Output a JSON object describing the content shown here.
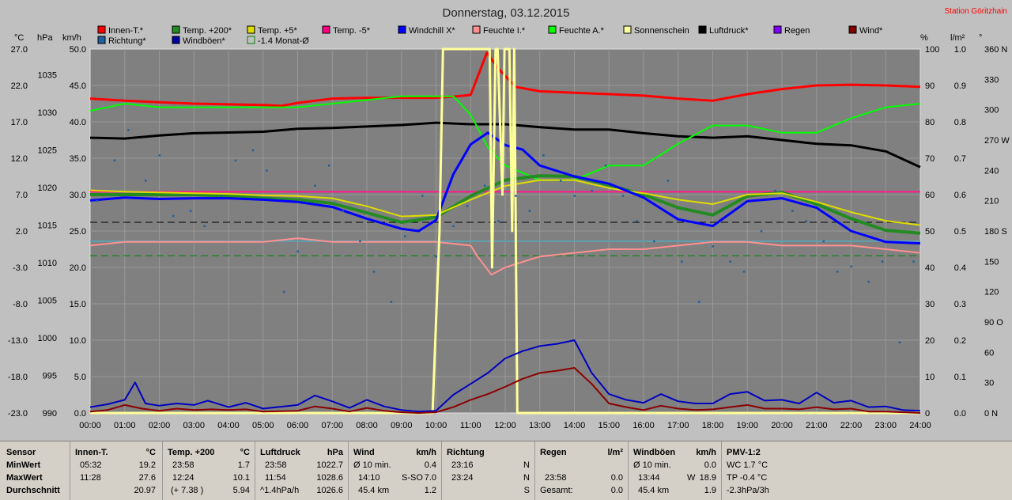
{
  "header": {
    "title": "Donnerstag, 03.12.2015",
    "station": "Station Göritzhain"
  },
  "units": {
    "celsius": "°C",
    "hpa": "hPa",
    "kmh": "km/h",
    "percent": "%",
    "lm2": "l/m²",
    "degree": "°"
  },
  "legend": [
    {
      "label": "Innen-T.*",
      "color": "#ff0000",
      "style": "box"
    },
    {
      "label": "Temp. +200*",
      "color": "#228b22",
      "style": "box"
    },
    {
      "label": "Temp. +5*",
      "color": "#dddd00",
      "style": "box"
    },
    {
      "label": "Temp. -5*",
      "color": "#ff0080",
      "style": "box"
    },
    {
      "label": "Windchill X*",
      "color": "#0000ff",
      "style": "box"
    },
    {
      "label": "Feuchte I.*",
      "color": "#ff9090",
      "style": "box"
    },
    {
      "label": "Feuchte A.*",
      "color": "#00ff00",
      "style": "box"
    },
    {
      "label": "Sonnenschein",
      "color": "#ffffa0",
      "style": "box"
    },
    {
      "label": "Luftdruck*",
      "color": "#000000",
      "style": "box"
    },
    {
      "label": "Regen",
      "color": "#8000ff",
      "style": "box"
    },
    {
      "label": "Wind*",
      "color": "#800000",
      "style": "box"
    },
    {
      "label": "Richtung*",
      "color": "#1f5f9f",
      "style": "box"
    },
    {
      "label": "Windböen*",
      "color": "#0000a0",
      "style": "box"
    },
    {
      "label": "-1.4 Monat-Ø",
      "color": "#008000",
      "style": "open"
    }
  ],
  "chart_data": {
    "type": "line",
    "title": "Donnerstag, 03.12.2015",
    "x_ticks": [
      "00:00",
      "01:00",
      "02:00",
      "03:00",
      "04:00",
      "05:00",
      "06:00",
      "07:00",
      "08:00",
      "09:00",
      "10:00",
      "11:00",
      "12:00",
      "13:00",
      "14:00",
      "15:00",
      "16:00",
      "17:00",
      "18:00",
      "19:00",
      "20:00",
      "21:00",
      "22:00",
      "23:00",
      "24:00"
    ],
    "axes": {
      "temp_c": {
        "ticks": [
          "27.0",
          "22.0",
          "17.0",
          "12.0",
          "7.0",
          "2.0",
          "-3.0",
          "-8.0",
          "-13.0",
          "-18.0",
          "-23.0"
        ],
        "range": [
          -23,
          27
        ]
      },
      "pressure_hpa": {
        "ticks": [
          "1035",
          "1030",
          "1025",
          "1020",
          "1015",
          "1010",
          "1005",
          "1000",
          "995",
          "990"
        ],
        "range": [
          990,
          1038.4
        ]
      },
      "wind_kmh": {
        "ticks": [
          "50.0",
          "45.0",
          "40.0",
          "35.0",
          "30.0",
          "25.0",
          "20.0",
          "15.0",
          "10.0",
          "5.0",
          "0.0"
        ],
        "range": [
          0,
          50
        ]
      },
      "humidity_pct": {
        "ticks": [
          "100",
          "90",
          "80",
          "70",
          "60",
          "50",
          "40",
          "30",
          "20",
          "10",
          "0"
        ],
        "range": [
          0,
          100
        ]
      },
      "rain_lm2": {
        "ticks": [
          "1.0",
          "0.9",
          "0.8",
          "0.7",
          "0.6",
          "0.5",
          "0.4",
          "0.3",
          "0.2",
          "0.1",
          "0.0"
        ],
        "range": [
          0,
          1
        ]
      },
      "direction_deg": {
        "ticks": [
          "360 N",
          "330",
          "300",
          "270 W",
          "240",
          "210",
          "180 S",
          "150",
          "120",
          "90 O",
          "60",
          "30",
          "0 N"
        ],
        "range": [
          0,
          360
        ]
      }
    },
    "reference_lines": [
      {
        "name": "Temp. -5*",
        "axis": "temp_c",
        "value": 7.4,
        "color": "#ff1a8c",
        "dash": "solid"
      },
      {
        "axis": "temp_c",
        "value": 3.2,
        "color": "#000000",
        "dash": "dashed"
      },
      {
        "name": "-1.4 Monat-Ø",
        "axis": "temp_c",
        "value": -1.4,
        "color": "#008000",
        "dash": "dashed"
      },
      {
        "axis": "temp_c",
        "value": 0.6,
        "color": "#60a0b0",
        "dash": "solid"
      }
    ],
    "series": [
      {
        "name": "Luftdruck*",
        "axis": "pressure_hpa",
        "color": "#000000",
        "x": [
          0,
          1,
          2,
          3,
          4,
          5,
          6,
          7,
          8,
          9,
          10,
          11,
          12,
          13,
          14,
          15,
          16,
          17,
          18,
          19,
          20,
          21,
          22,
          23,
          24
        ],
        "y": [
          1026.6,
          1026.5,
          1026.9,
          1027.2,
          1027.3,
          1027.4,
          1027.8,
          1027.9,
          1028.1,
          1028.3,
          1028.6,
          1028.4,
          1028.4,
          1028.0,
          1027.7,
          1027.7,
          1027.2,
          1026.8,
          1026.6,
          1026.8,
          1026.3,
          1025.8,
          1025.6,
          1024.8,
          1022.7
        ]
      },
      {
        "name": "Innen-T.*",
        "axis": "temp_c",
        "color": "#ff0000",
        "x": [
          0,
          1,
          2,
          3,
          4,
          5,
          5.53,
          6,
          7,
          8,
          9,
          10,
          10.6,
          11,
          11.47,
          11.8,
          12.3,
          13,
          14,
          15,
          16,
          17,
          18,
          19,
          20,
          21,
          22,
          23,
          24
        ],
        "y": [
          20.2,
          19.9,
          19.7,
          19.5,
          19.4,
          19.3,
          19.2,
          19.6,
          20.2,
          20.3,
          20.3,
          20.3,
          20.5,
          20.7,
          26.5,
          24.3,
          21.8,
          21.2,
          21.0,
          20.8,
          20.6,
          20.2,
          19.9,
          20.8,
          21.5,
          22.0,
          22.1,
          22.0,
          21.8
        ]
      },
      {
        "name": "Feuchte A.*",
        "axis": "humidity_pct",
        "color": "#00ff00",
        "x": [
          0,
          1,
          2,
          3,
          4,
          5,
          6,
          7,
          8,
          9,
          10,
          10.5,
          11,
          11.5,
          12,
          13,
          14,
          15,
          16,
          17,
          18,
          19,
          20,
          21,
          22,
          23,
          24
        ],
        "y": [
          83,
          85,
          84,
          84,
          84,
          84,
          84,
          85,
          86,
          87,
          87,
          87,
          82,
          73,
          68,
          64,
          64,
          68,
          68,
          74,
          79,
          79,
          77,
          77,
          81,
          84,
          85
        ]
      },
      {
        "name": "Feuchte I.*",
        "axis": "humidity_pct",
        "color": "#ff9090",
        "x": [
          0,
          1,
          2,
          3,
          4,
          5,
          6,
          7,
          8,
          9,
          10,
          11,
          11.2,
          11.6,
          12,
          13,
          14,
          15,
          16,
          17,
          18,
          19,
          20,
          21,
          22,
          23,
          24
        ],
        "y": [
          46,
          47,
          47,
          47,
          47,
          47,
          48,
          47,
          47,
          47,
          47,
          46,
          43,
          38,
          40,
          43,
          44,
          45,
          45,
          46,
          47,
          47,
          46,
          46,
          46,
          45,
          44
        ]
      },
      {
        "name": "Temp. +200*",
        "axis": "temp_c",
        "color": "#228b22",
        "x": [
          0,
          1,
          2,
          3,
          4,
          5,
          6,
          7,
          8,
          9,
          10,
          11,
          12,
          13,
          14,
          15,
          16,
          17,
          18,
          19,
          20,
          21,
          22,
          23,
          24
        ],
        "y": [
          7.0,
          7.0,
          7.0,
          7.0,
          6.8,
          6.5,
          6.3,
          5.8,
          4.5,
          3.2,
          3.9,
          6.8,
          9.0,
          9.6,
          9.5,
          8.3,
          7.0,
          5.2,
          4.2,
          6.8,
          7.3,
          5.7,
          3.7,
          2.1,
          1.7
        ]
      },
      {
        "name": "Temp. +5*",
        "axis": "temp_c",
        "color": "#dddd00",
        "x": [
          0,
          1,
          2,
          3,
          4,
          5,
          6,
          7,
          8,
          9,
          10,
          11,
          12,
          13,
          14,
          15,
          16,
          17,
          18,
          19,
          20,
          21,
          22,
          23,
          24
        ],
        "y": [
          7.6,
          7.4,
          7.3,
          7.2,
          7.1,
          6.9,
          6.8,
          6.5,
          5.4,
          4.0,
          4.2,
          6.3,
          8.2,
          9.0,
          9.0,
          7.9,
          7.2,
          6.3,
          5.7,
          7.0,
          7.2,
          6.0,
          4.6,
          3.4,
          2.8
        ]
      },
      {
        "name": "Windchill X*",
        "axis": "temp_c",
        "color": "#0000ff",
        "x": [
          0,
          1,
          2,
          3,
          4,
          5,
          6,
          7,
          8,
          9,
          9.5,
          10,
          10.5,
          11,
          11.5,
          12,
          12.5,
          13,
          14,
          15,
          16,
          17,
          18,
          19,
          20,
          21,
          22,
          23,
          24
        ],
        "y": [
          6.2,
          6.6,
          6.4,
          6.5,
          6.5,
          6.3,
          6.0,
          5.3,
          3.7,
          2.3,
          2.0,
          3.5,
          9.8,
          13.9,
          15.5,
          13.8,
          13.2,
          11.0,
          9.5,
          8.5,
          6.6,
          3.6,
          2.7,
          6.1,
          6.5,
          5.2,
          2.0,
          0.5,
          0.3
        ]
      },
      {
        "name": "Sonnenschein",
        "axis": "humidity_pct",
        "color": "#ffff99",
        "x": [
          0,
          9.9,
          10.1,
          10.2,
          11.0,
          11.3,
          11.55,
          11.62,
          11.72,
          11.78,
          11.92,
          11.98,
          12.12,
          12.2,
          12.26,
          12.35,
          24
        ],
        "y": [
          0,
          0,
          50,
          100,
          100,
          100,
          100,
          40,
          100,
          100,
          60,
          100,
          100,
          50,
          100,
          0,
          0
        ]
      },
      {
        "name": "Windböen*",
        "axis": "wind_kmh",
        "color": "#0000c0",
        "x": [
          0,
          0.5,
          1,
          1.3,
          1.6,
          2,
          2.5,
          3,
          3.4,
          4,
          4.5,
          5,
          6,
          6.5,
          7,
          7.5,
          8,
          8.5,
          9,
          9.5,
          10,
          10.5,
          11,
          11.5,
          12,
          12.5,
          13,
          13.5,
          14,
          14.5,
          15,
          15.5,
          16,
          16.5,
          17,
          17.5,
          18,
          18.5,
          19,
          19.5,
          20,
          20.5,
          21,
          21.5,
          22,
          22.5,
          23,
          23.5,
          24
        ],
        "y": [
          0.8,
          1.2,
          1.8,
          4.2,
          1.3,
          1.0,
          1.3,
          1.1,
          1.7,
          0.8,
          1.4,
          0.6,
          1.1,
          2.4,
          1.6,
          0.7,
          1.8,
          0.9,
          0.4,
          0.2,
          0.3,
          2.5,
          4.0,
          5.5,
          7.5,
          8.5,
          9.2,
          9.5,
          10.0,
          5.5,
          2.6,
          1.8,
          1.4,
          2.6,
          1.6,
          1.3,
          1.3,
          2.6,
          2.9,
          1.7,
          1.8,
          1.3,
          2.8,
          1.4,
          1.7,
          0.8,
          0.9,
          0.4,
          0.3
        ]
      },
      {
        "name": "Wind*",
        "axis": "wind_kmh",
        "color": "#8b0000",
        "x": [
          0,
          0.5,
          1,
          1.5,
          2,
          2.5,
          3,
          3.5,
          4,
          4.5,
          5,
          6,
          6.5,
          7,
          7.5,
          8,
          8.5,
          9,
          9.5,
          10,
          10.5,
          11,
          11.5,
          12,
          12.5,
          13,
          13.5,
          14,
          14.5,
          15,
          15.5,
          16,
          16.5,
          17,
          17.5,
          18,
          18.5,
          19,
          19.5,
          20,
          20.5,
          21,
          21.5,
          22,
          22.5,
          23,
          23.5,
          24
        ],
        "y": [
          0.2,
          0.4,
          1.1,
          0.6,
          0.3,
          0.6,
          0.4,
          0.5,
          0.4,
          0.5,
          0.2,
          0.3,
          0.9,
          0.6,
          0.2,
          0.7,
          0.3,
          0.1,
          0.0,
          0.1,
          0.8,
          1.8,
          2.6,
          3.6,
          4.7,
          5.5,
          5.8,
          6.2,
          4.0,
          1.3,
          0.8,
          0.4,
          1.0,
          0.6,
          0.4,
          0.5,
          0.8,
          1.1,
          0.6,
          0.6,
          0.5,
          0.8,
          0.5,
          0.6,
          0.2,
          0.2,
          0.1,
          0.0
        ]
      },
      {
        "name": "Richtung*",
        "axis": "direction_deg",
        "color": "#1f5f9f",
        "x": [
          0.2,
          0.7,
          1.1,
          1.6,
          2.0,
          2.4,
          2.9,
          3.3,
          3.8,
          4.2,
          4.7,
          5.1,
          5.6,
          6.0,
          6.5,
          6.9,
          7.3,
          7.8,
          8.2,
          8.7,
          9.1,
          9.6,
          10.0,
          10.5,
          10.9,
          11.4,
          11.8,
          12.3,
          12.7,
          13.1,
          13.6,
          14.0,
          14.5,
          14.9,
          15.4,
          15.8,
          16.3,
          16.7,
          17.1,
          17.6,
          18.0,
          18.5,
          18.9,
          19.4,
          19.8,
          20.3,
          20.7,
          21.2,
          21.6,
          22.0,
          22.5,
          22.9,
          23.4,
          23.8
        ],
        "y": [
          210,
          250,
          280,
          230,
          255,
          195,
          200,
          185,
          215,
          250,
          260,
          240,
          120,
          160,
          225,
          245,
          200,
          170,
          140,
          110,
          175,
          215,
          155,
          185,
          205,
          225,
          190,
          215,
          200,
          255,
          230,
          215,
          220,
          245,
          215,
          190,
          170,
          230,
          150,
          110,
          165,
          150,
          140,
          180,
          220,
          200,
          190,
          170,
          140,
          145,
          130,
          150,
          70,
          150
        ]
      }
    ]
  },
  "stats": {
    "row_labels": [
      "Sensor",
      "MinWert",
      "MaxWert",
      "Durchschnitt"
    ],
    "innen": {
      "title": "Innen-T.",
      "unit": "°C",
      "min_time": "05:32",
      "min_val": "19.2",
      "max_time": "11:28",
      "max_val": "27.6",
      "avg": "20.97"
    },
    "temp200": {
      "title": "Temp. +200",
      "unit": "°C",
      "min_time": "23:58",
      "min_val": "1.7",
      "max_time": "12:24",
      "max_val": "10.1",
      "avg_note": "(+ 7.38 )",
      "avg": "5.94"
    },
    "luftdruck": {
      "title": "Luftdruck",
      "unit": "hPa",
      "min_time": "23:58",
      "min_val": "1022.7",
      "max_time": "11:54",
      "max_val": "1028.6",
      "avg_note": "^1.4hPa/h",
      "avg": "1026.6"
    },
    "wind": {
      "title": "Wind",
      "unit": "km/h",
      "min_time": "Ø 10 min.",
      "min_val": "0.4",
      "max_time": "14:10",
      "max_dir": "S-SO",
      "max_val": "7.0",
      "avg_note": "45.4 km",
      "avg": "1.2"
    },
    "richtung": {
      "title": "Richtung",
      "min_time": "23:16",
      "min_val": "N",
      "max_time": "23:24",
      "max_val": "N",
      "avg": "S"
    },
    "regen": {
      "title": "Regen",
      "unit": "l/m²",
      "max_time": "23:58",
      "max_val": "0.0",
      "avg_note": "Gesamt:",
      "avg": "0.0"
    },
    "windboeen": {
      "title": "Windböen",
      "unit": "km/h",
      "min_time": "Ø 10 min.",
      "min_val": "0.0",
      "max_time": "13:44",
      "max_dir": "W",
      "max_val": "18.9",
      "avg_note": "45.4 km",
      "avg": "1.9"
    },
    "pmv": {
      "title": "PMV-1:2",
      "min": "WC 1.7 °C",
      "max": "TP -0.4 °C",
      "avg": "-2.3hPa/3h"
    }
  }
}
